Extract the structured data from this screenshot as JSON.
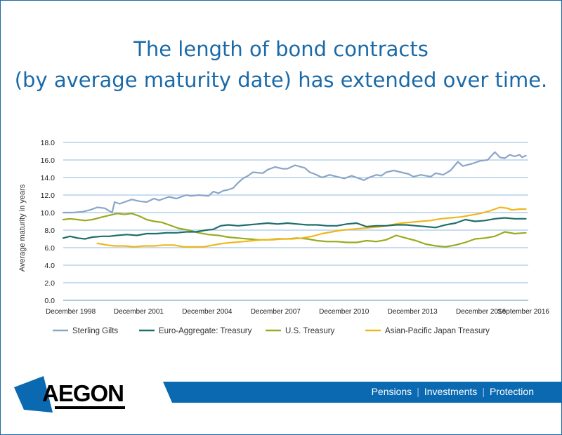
{
  "title_lines": [
    "The length of bond contracts",
    "(by average maturity date) has extended over time."
  ],
  "footer": {
    "brand": "AEGON",
    "tagline": [
      "Pensions",
      "Investments",
      "Protection"
    ],
    "separator": "|"
  },
  "colors": {
    "brand_blue": "#1a6aa9",
    "bar_blue": "#0a69b0",
    "grid": "#a7c8e6",
    "sterling": "#8aa6c6",
    "euro": "#1e6e6b",
    "us": "#9aaa1e",
    "asian": "#f0b71a"
  },
  "chart_data": {
    "type": "line",
    "ylabel": "Average maturity in years",
    "xlabel": "",
    "ylim": [
      0,
      18
    ],
    "yticks": [
      "0.0",
      "2.0",
      "4.0",
      "6.0",
      "8.0",
      "10.0",
      "12.0",
      "14.0",
      "16.0",
      "18.0"
    ],
    "xlim": [
      1998.92,
      2017.75
    ],
    "x_tick_labels": [
      "December 1998",
      "December 2001",
      "December 2004",
      "December 2007",
      "December 2010",
      "December 2013",
      "December 2016",
      "September 2016"
    ],
    "grid": "horizontal",
    "legend": "bottom",
    "series": [
      {
        "name": "Sterling Gilts",
        "color_key": "sterling",
        "x": [
          1998.92,
          1999.3,
          1999.7,
          2000.0,
          2000.3,
          2000.6,
          2000.9,
          2001.0,
          2001.2,
          2001.4,
          2001.7,
          2002.0,
          2002.3,
          2002.6,
          2002.8,
          2003.2,
          2003.5,
          2003.9,
          2004.1,
          2004.4,
          2004.8,
          2005.0,
          2005.2,
          2005.4,
          2005.6,
          2005.8,
          2006.0,
          2006.2,
          2006.4,
          2006.6,
          2007.0,
          2007.2,
          2007.5,
          2007.8,
          2008.0,
          2008.3,
          2008.7,
          2008.9,
          2009.1,
          2009.4,
          2009.7,
          2010.0,
          2010.3,
          2010.6,
          2010.9,
          2011.1,
          2011.3,
          2011.6,
          2011.8,
          2012.0,
          2012.3,
          2012.6,
          2012.9,
          2013.1,
          2013.4,
          2013.8,
          2014.0,
          2014.3,
          2014.6,
          2014.9,
          2015.1,
          2015.5,
          2015.8,
          2016.1,
          2016.4,
          2016.6,
          2016.8,
          2017.0,
          2017.2,
          2017.4,
          2017.5,
          2017.65
        ],
        "values": [
          10.0,
          10.0,
          10.1,
          10.3,
          10.6,
          10.5,
          10.0,
          11.2,
          11.0,
          11.2,
          11.5,
          11.3,
          11.2,
          11.6,
          11.4,
          11.8,
          11.6,
          12.0,
          11.9,
          12.0,
          11.9,
          12.4,
          12.2,
          12.5,
          12.6,
          12.8,
          13.4,
          13.9,
          14.2,
          14.6,
          14.5,
          14.9,
          15.2,
          15.0,
          15.0,
          15.4,
          15.1,
          14.6,
          14.4,
          14.0,
          14.3,
          14.1,
          13.9,
          14.2,
          13.9,
          13.7,
          14.0,
          14.3,
          14.2,
          14.6,
          14.8,
          14.6,
          14.4,
          14.1,
          14.3,
          14.1,
          14.5,
          14.3,
          14.8,
          15.8,
          15.3,
          15.6,
          15.9,
          16.0,
          16.9,
          16.3,
          16.2,
          16.6,
          16.4,
          16.6,
          16.3,
          16.5
        ]
      },
      {
        "name": "Euro-Aggregate: Treasury",
        "color_key": "euro",
        "x": [
          1998.92,
          1999.2,
          1999.5,
          1999.8,
          2000.1,
          2000.5,
          2000.8,
          2001.1,
          2001.5,
          2001.9,
          2002.3,
          2002.7,
          2003.1,
          2003.5,
          2003.9,
          2004.3,
          2004.7,
          2005.0,
          2005.3,
          2005.6,
          2006.0,
          2006.4,
          2006.8,
          2007.2,
          2007.6,
          2008.0,
          2008.4,
          2008.8,
          2009.2,
          2009.6,
          2010.0,
          2010.4,
          2010.8,
          2011.2,
          2011.6,
          2012.0,
          2012.4,
          2012.8,
          2013.2,
          2013.6,
          2014.0,
          2014.4,
          2014.8,
          2015.2,
          2015.6,
          2016.0,
          2016.4,
          2016.8,
          2017.2,
          2017.65
        ],
        "values": [
          7.1,
          7.3,
          7.1,
          7.0,
          7.2,
          7.3,
          7.3,
          7.4,
          7.5,
          7.4,
          7.6,
          7.6,
          7.7,
          7.7,
          7.8,
          7.8,
          8.0,
          8.1,
          8.5,
          8.6,
          8.5,
          8.6,
          8.7,
          8.8,
          8.7,
          8.8,
          8.7,
          8.6,
          8.6,
          8.5,
          8.5,
          8.7,
          8.8,
          8.4,
          8.5,
          8.5,
          8.6,
          8.6,
          8.5,
          8.4,
          8.3,
          8.6,
          8.8,
          9.2,
          9.0,
          9.1,
          9.3,
          9.4,
          9.3,
          9.3
        ]
      },
      {
        "name": "U.S. Treasury",
        "color_key": "us",
        "x": [
          1998.92,
          1999.2,
          1999.5,
          1999.8,
          2000.1,
          2000.5,
          2000.8,
          2001.1,
          2001.4,
          2001.7,
          2002.0,
          2002.3,
          2002.6,
          2002.9,
          2003.2,
          2003.6,
          2004.0,
          2004.4,
          2004.8,
          2005.2,
          2005.6,
          2006.0,
          2006.4,
          2006.8,
          2007.2,
          2007.6,
          2008.0,
          2008.4,
          2008.8,
          2009.2,
          2009.6,
          2010.0,
          2010.4,
          2010.8,
          2011.2,
          2011.6,
          2012.0,
          2012.4,
          2012.8,
          2013.2,
          2013.6,
          2014.0,
          2014.4,
          2014.8,
          2015.2,
          2015.6,
          2016.0,
          2016.4,
          2016.8,
          2017.2,
          2017.65
        ],
        "values": [
          9.2,
          9.3,
          9.2,
          9.1,
          9.2,
          9.5,
          9.7,
          9.9,
          9.8,
          9.9,
          9.6,
          9.2,
          9.0,
          8.9,
          8.6,
          8.2,
          8.0,
          7.7,
          7.5,
          7.4,
          7.2,
          7.1,
          7.0,
          6.9,
          6.9,
          7.0,
          7.0,
          7.1,
          7.0,
          6.8,
          6.7,
          6.7,
          6.6,
          6.6,
          6.8,
          6.7,
          6.9,
          7.4,
          7.1,
          6.8,
          6.4,
          6.2,
          6.1,
          6.3,
          6.6,
          7.0,
          7.1,
          7.3,
          7.8,
          7.6,
          7.7
        ]
      },
      {
        "name": "Asian-Pacific Japan Treasury",
        "color_key": "asian",
        "x": [
          2000.3,
          2000.7,
          2001.0,
          2001.4,
          2001.8,
          2002.2,
          2002.6,
          2003.0,
          2003.4,
          2003.8,
          2004.2,
          2004.6,
          2005.0,
          2005.4,
          2005.8,
          2006.2,
          2006.6,
          2007.0,
          2007.4,
          2007.8,
          2008.2,
          2008.6,
          2009.0,
          2009.4,
          2009.8,
          2010.2,
          2010.6,
          2011.0,
          2011.4,
          2011.8,
          2012.2,
          2012.6,
          2013.0,
          2013.4,
          2013.8,
          2014.2,
          2014.6,
          2015.0,
          2015.4,
          2015.8,
          2016.2,
          2016.6,
          2016.9,
          2017.1,
          2017.4,
          2017.65
        ],
        "values": [
          6.5,
          6.3,
          6.2,
          6.2,
          6.1,
          6.2,
          6.2,
          6.3,
          6.3,
          6.1,
          6.1,
          6.1,
          6.3,
          6.5,
          6.6,
          6.7,
          6.8,
          6.9,
          6.9,
          7.0,
          7.0,
          7.1,
          7.3,
          7.6,
          7.8,
          8.0,
          8.1,
          8.2,
          8.3,
          8.4,
          8.6,
          8.8,
          8.9,
          9.0,
          9.1,
          9.3,
          9.4,
          9.5,
          9.7,
          9.9,
          10.2,
          10.6,
          10.5,
          10.3,
          10.4,
          10.4
        ]
      }
    ]
  }
}
